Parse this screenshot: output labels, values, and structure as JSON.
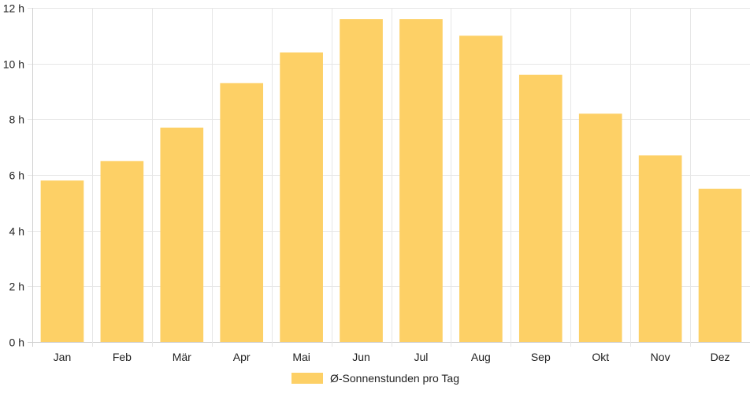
{
  "chart_data": {
    "type": "bar",
    "categories": [
      "Jan",
      "Feb",
      "Mär",
      "Apr",
      "Mai",
      "Jun",
      "Jul",
      "Aug",
      "Sep",
      "Okt",
      "Nov",
      "Dez"
    ],
    "series": [
      {
        "name": "Ø-Sonnenstunden pro Tag",
        "values": [
          5.8,
          6.5,
          7.7,
          9.3,
          10.4,
          11.6,
          11.6,
          11.0,
          9.6,
          8.2,
          6.7,
          5.5
        ],
        "color": "#fdd066"
      }
    ],
    "yticks": [
      "0 h",
      "2 h",
      "4 h",
      "6 h",
      "8 h",
      "10 h",
      "12 h"
    ],
    "ylim": [
      0,
      12
    ],
    "grid": true,
    "legend_position": "bottom"
  },
  "colors": {
    "bar": "#fdd066",
    "grid": "#e6e6e6",
    "axis": "#d0d0d0",
    "text": "#222222"
  }
}
